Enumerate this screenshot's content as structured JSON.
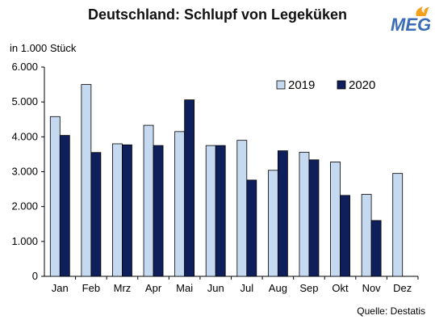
{
  "header": {
    "title": "Deutschland: Schlupf von Legeküken",
    "unit_label": "in 1.000 Stück",
    "logo_text": "MEG"
  },
  "footer": {
    "source": "Quelle: Destatis"
  },
  "colors": {
    "series_2019": "#c5d9f1",
    "series_2020": "#0f1f5c",
    "logo_blue": "#3a6db5",
    "logo_orange": "#f4a11d"
  },
  "chart_data": {
    "type": "bar",
    "title": "Deutschland: Schlupf von Legeküken",
    "xlabel": "",
    "ylabel": "in 1.000 Stück",
    "ylim": [
      0,
      6000
    ],
    "y_ticks": [
      0,
      1000,
      2000,
      3000,
      4000,
      5000,
      6000
    ],
    "y_tick_labels": [
      "0",
      "1.000",
      "2.000",
      "3.000",
      "4.000",
      "5.000",
      "6.000"
    ],
    "categories": [
      "Jan",
      "Feb",
      "Mrz",
      "Apr",
      "Mai",
      "Jun",
      "Jul",
      "Aug",
      "Sep",
      "Okt",
      "Nov",
      "Dez"
    ],
    "series": [
      {
        "name": "2019",
        "values": [
          4580,
          5500,
          3800,
          4330,
          4150,
          3750,
          3900,
          3040,
          3560,
          3280,
          2350,
          2950
        ]
      },
      {
        "name": "2020",
        "values": [
          4040,
          3550,
          3770,
          3750,
          5060,
          3750,
          2760,
          3600,
          3340,
          2320,
          1600,
          null
        ]
      }
    ],
    "grid": false,
    "legend_position": "top-right"
  }
}
